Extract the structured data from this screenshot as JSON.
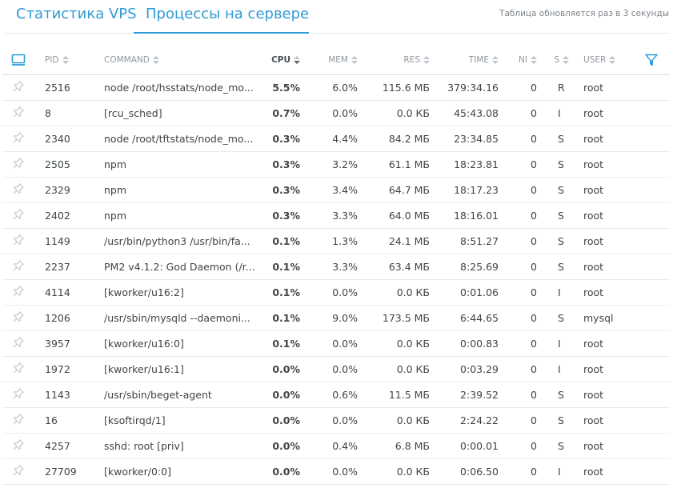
{
  "tabs": [
    {
      "label": "Статистика VPS"
    },
    {
      "label": "Процессы на сервере"
    }
  ],
  "refresh_note": "Таблица обновляется раз в 3 секунды",
  "columns": {
    "pid": "PID",
    "command": "COMMAND",
    "cpu": "CPU",
    "mem": "MEM",
    "res": "RES",
    "time": "TIME",
    "ni": "NI",
    "s": "S",
    "user": "USER"
  },
  "icons": {
    "header_left": "monitor-icon",
    "header_right": "filter-icon",
    "row": "pin-icon"
  },
  "colors": {
    "accent": "#2f9bd4",
    "pin": "#c4cbd1"
  },
  "rows": [
    {
      "pid": "2516",
      "command": "node /root/hsstats/node_mo...",
      "cpu": "5.5%",
      "mem": "6.0%",
      "res": "115.6 МБ",
      "time": "379:34.16",
      "ni": "0",
      "s": "R",
      "user": "root"
    },
    {
      "pid": "8",
      "command": "[rcu_sched]",
      "cpu": "0.7%",
      "mem": "0.0%",
      "res": "0.0 КБ",
      "time": "45:43.08",
      "ni": "0",
      "s": "I",
      "user": "root"
    },
    {
      "pid": "2340",
      "command": "node /root/tftstats/node_mo...",
      "cpu": "0.3%",
      "mem": "4.4%",
      "res": "84.2 МБ",
      "time": "23:34.85",
      "ni": "0",
      "s": "S",
      "user": "root"
    },
    {
      "pid": "2505",
      "command": "npm",
      "cpu": "0.3%",
      "mem": "3.2%",
      "res": "61.1 МБ",
      "time": "18:23.81",
      "ni": "0",
      "s": "S",
      "user": "root"
    },
    {
      "pid": "2329",
      "command": "npm",
      "cpu": "0.3%",
      "mem": "3.4%",
      "res": "64.7 МБ",
      "time": "18:17.23",
      "ni": "0",
      "s": "S",
      "user": "root"
    },
    {
      "pid": "2402",
      "command": "npm",
      "cpu": "0.3%",
      "mem": "3.3%",
      "res": "64.0 МБ",
      "time": "18:16.01",
      "ni": "0",
      "s": "S",
      "user": "root"
    },
    {
      "pid": "1149",
      "command": "/usr/bin/python3 /usr/bin/fa...",
      "cpu": "0.1%",
      "mem": "1.3%",
      "res": "24.1 МБ",
      "time": "8:51.27",
      "ni": "0",
      "s": "S",
      "user": "root"
    },
    {
      "pid": "2237",
      "command": "PM2 v4.1.2: God Daemon (/r...",
      "cpu": "0.1%",
      "mem": "3.3%",
      "res": "63.4 МБ",
      "time": "8:25.69",
      "ni": "0",
      "s": "S",
      "user": "root"
    },
    {
      "pid": "4114",
      "command": "[kworker/u16:2]",
      "cpu": "0.1%",
      "mem": "0.0%",
      "res": "0.0 КБ",
      "time": "0:01.06",
      "ni": "0",
      "s": "I",
      "user": "root"
    },
    {
      "pid": "1206",
      "command": "/usr/sbin/mysqld --daemoni...",
      "cpu": "0.1%",
      "mem": "9.0%",
      "res": "173.5 МБ",
      "time": "6:44.65",
      "ni": "0",
      "s": "S",
      "user": "mysql"
    },
    {
      "pid": "3957",
      "command": "[kworker/u16:0]",
      "cpu": "0.1%",
      "mem": "0.0%",
      "res": "0.0 КБ",
      "time": "0:00.83",
      "ni": "0",
      "s": "I",
      "user": "root"
    },
    {
      "pid": "1972",
      "command": "[kworker/u16:1]",
      "cpu": "0.0%",
      "mem": "0.0%",
      "res": "0.0 КБ",
      "time": "0:03.29",
      "ni": "0",
      "s": "I",
      "user": "root"
    },
    {
      "pid": "1143",
      "command": "/usr/sbin/beget-agent",
      "cpu": "0.0%",
      "mem": "0.6%",
      "res": "11.5 МБ",
      "time": "2:39.52",
      "ni": "0",
      "s": "S",
      "user": "root"
    },
    {
      "pid": "16",
      "command": "[ksoftirqd/1]",
      "cpu": "0.0%",
      "mem": "0.0%",
      "res": "0.0 КБ",
      "time": "2:24.22",
      "ni": "0",
      "s": "S",
      "user": "root"
    },
    {
      "pid": "4257",
      "command": "sshd: root [priv]",
      "cpu": "0.0%",
      "mem": "0.4%",
      "res": "6.8 МБ",
      "time": "0:00.01",
      "ni": "0",
      "s": "S",
      "user": "root"
    },
    {
      "pid": "27709",
      "command": "[kworker/0:0]",
      "cpu": "0.0%",
      "mem": "0.0%",
      "res": "0.0 КБ",
      "time": "0:06.50",
      "ni": "0",
      "s": "I",
      "user": "root"
    }
  ]
}
